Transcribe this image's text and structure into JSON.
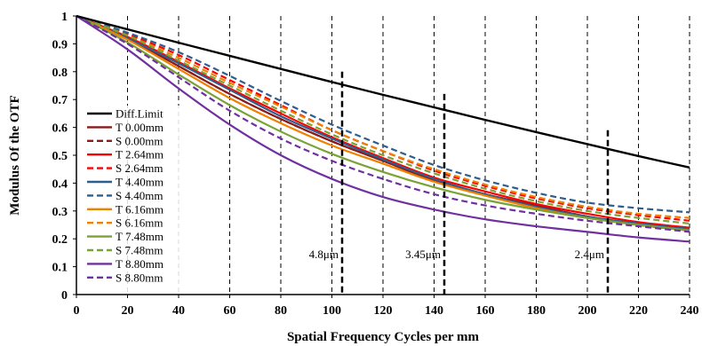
{
  "chart_data": {
    "type": "line",
    "xlabel": "Spatial Frequency Cycles per mm",
    "ylabel": "Modulus Of the OTF",
    "xlim": [
      0,
      240
    ],
    "ylim": [
      0,
      1
    ],
    "x_ticks": [
      0,
      20,
      40,
      60,
      80,
      100,
      120,
      140,
      160,
      180,
      200,
      220,
      240
    ],
    "y_ticks": [
      0,
      0.1,
      0.2,
      0.3,
      0.4,
      0.5,
      0.6,
      0.7,
      0.8,
      0.9,
      1
    ],
    "grid": "vertical dashed",
    "legend_position": "left",
    "x": [
      0,
      20,
      40,
      60,
      80,
      100,
      120,
      140,
      160,
      180,
      200,
      220,
      240
    ],
    "series": [
      {
        "name": "Diff.Limit",
        "color": "#000000",
        "dash": "solid",
        "values": [
          1.0,
          0.952,
          0.904,
          0.857,
          0.81,
          0.763,
          0.717,
          0.672,
          0.627,
          0.583,
          0.54,
          0.497,
          0.456
        ]
      },
      {
        "name": "T 0.00mm",
        "color": "#8b1a1a",
        "dash": "solid",
        "values": [
          1.0,
          0.92,
          0.82,
          0.72,
          0.63,
          0.55,
          0.48,
          0.41,
          0.36,
          0.32,
          0.28,
          0.25,
          0.23
        ]
      },
      {
        "name": "S 0.00mm",
        "color": "#8b1a1a",
        "dash": "dashed",
        "values": [
          1.0,
          0.92,
          0.82,
          0.72,
          0.63,
          0.55,
          0.48,
          0.41,
          0.36,
          0.32,
          0.28,
          0.25,
          0.23
        ]
      },
      {
        "name": "T 2.64mm",
        "color": "#ff0000",
        "dash": "solid",
        "values": [
          1.0,
          0.925,
          0.835,
          0.74,
          0.65,
          0.565,
          0.49,
          0.42,
          0.37,
          0.325,
          0.29,
          0.26,
          0.24
        ]
      },
      {
        "name": "S 2.64mm",
        "color": "#ff0000",
        "dash": "dashed",
        "values": [
          1.0,
          0.935,
          0.86,
          0.77,
          0.68,
          0.59,
          0.515,
          0.445,
          0.39,
          0.345,
          0.31,
          0.285,
          0.265
        ]
      },
      {
        "name": "T 4.40mm",
        "color": "#2e5e8e",
        "dash": "solid",
        "values": [
          1.0,
          0.92,
          0.83,
          0.735,
          0.64,
          0.56,
          0.485,
          0.415,
          0.36,
          0.315,
          0.28,
          0.255,
          0.235
        ]
      },
      {
        "name": "S 4.40mm",
        "color": "#2e5e8e",
        "dash": "dashed",
        "values": [
          1.0,
          0.94,
          0.87,
          0.785,
          0.695,
          0.61,
          0.535,
          0.465,
          0.41,
          0.365,
          0.33,
          0.31,
          0.295
        ]
      },
      {
        "name": "T 6.16mm",
        "color": "#f08000",
        "dash": "solid",
        "values": [
          1.0,
          0.915,
          0.81,
          0.705,
          0.615,
          0.535,
          0.47,
          0.405,
          0.355,
          0.31,
          0.275,
          0.25,
          0.23
        ]
      },
      {
        "name": "S 6.16mm",
        "color": "#f08000",
        "dash": "dashed",
        "values": [
          1.0,
          0.93,
          0.85,
          0.76,
          0.675,
          0.59,
          0.515,
          0.45,
          0.395,
          0.35,
          0.315,
          0.29,
          0.275
        ]
      },
      {
        "name": "T 7.48mm",
        "color": "#7aa235",
        "dash": "solid",
        "values": [
          1.0,
          0.905,
          0.79,
          0.68,
          0.585,
          0.505,
          0.44,
          0.385,
          0.34,
          0.305,
          0.275,
          0.25,
          0.23
        ]
      },
      {
        "name": "S 7.48mm",
        "color": "#7aa235",
        "dash": "dashed",
        "values": [
          1.0,
          0.93,
          0.84,
          0.75,
          0.66,
          0.575,
          0.5,
          0.435,
          0.38,
          0.335,
          0.3,
          0.275,
          0.255
        ]
      },
      {
        "name": "T 8.80mm",
        "color": "#7030a0",
        "dash": "solid",
        "values": [
          1.0,
          0.88,
          0.74,
          0.61,
          0.5,
          0.415,
          0.35,
          0.305,
          0.27,
          0.245,
          0.225,
          0.205,
          0.19
        ]
      },
      {
        "name": "S 8.80mm",
        "color": "#7030a0",
        "dash": "dashed",
        "values": [
          1.0,
          0.9,
          0.78,
          0.66,
          0.56,
          0.48,
          0.415,
          0.36,
          0.32,
          0.29,
          0.265,
          0.245,
          0.225
        ]
      }
    ],
    "markers": [
      {
        "x": 104,
        "y": 0.8,
        "label": "4.8μm"
      },
      {
        "x": 144,
        "y": 0.72,
        "label": "3.45μm"
      },
      {
        "x": 208,
        "y": 0.59,
        "label": "2.4μm"
      }
    ]
  }
}
